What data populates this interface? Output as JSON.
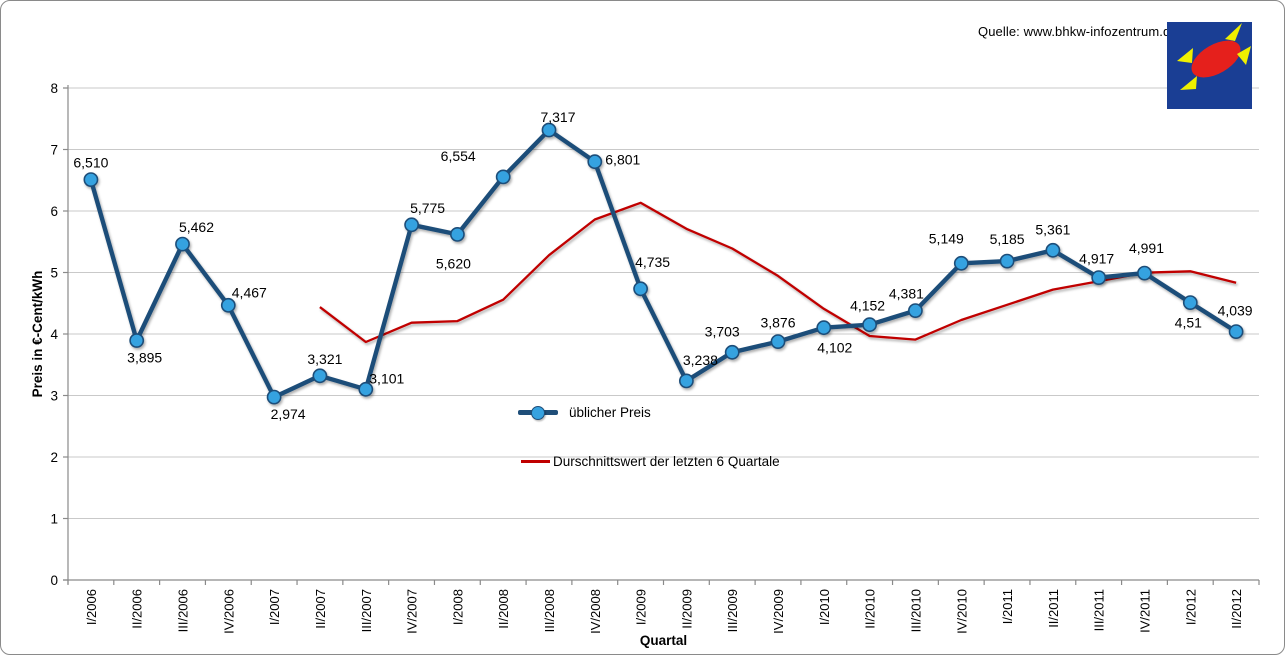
{
  "source": {
    "label": "Quelle: www.bhkw-infozentrum.de"
  },
  "logo": {
    "name": "bhkw-infozentrum-logo",
    "bg_color": "#1A3E94",
    "ellipse_color": "#E5201C",
    "spark_color": "#EFF000"
  },
  "chart_data": {
    "type": "line",
    "title": "",
    "xlabel": "Quartal",
    "ylabel": "Preis in €-Cent/kWh",
    "ylim": [
      0,
      8
    ],
    "yticks": [
      0,
      1,
      2,
      3,
      4,
      5,
      6,
      7,
      8
    ],
    "grid": true,
    "legend_position": "inside-center",
    "categories": [
      "I/2006",
      "II/2006",
      "III/2006",
      "IV/2006",
      "I/2007",
      "II/2007",
      "III/2007",
      "IV/2007",
      "I/2008",
      "II/2008",
      "III/2008",
      "IV/2008",
      "I/2009",
      "II/2009",
      "III/2009",
      "IV/2009",
      "I/2010",
      "II/2010",
      "III/2010",
      "IV/2010",
      "I/2011",
      "II/2011",
      "III/2011",
      "IV/2011",
      "I/2012",
      "II/2012"
    ],
    "series": [
      {
        "name": "üblicher Preis",
        "style": "line-with-markers",
        "color": "#1F4E79",
        "marker_color": "#36A2E0",
        "values": [
          6.51,
          3.895,
          5.462,
          4.467,
          2.974,
          3.321,
          3.101,
          5.775,
          5.62,
          6.554,
          7.317,
          6.801,
          4.735,
          3.238,
          3.703,
          3.876,
          4.102,
          4.152,
          4.381,
          5.149,
          5.185,
          5.361,
          4.917,
          4.991,
          4.51,
          4.039
        ],
        "labels": [
          "6,510",
          "3,895",
          "5,462",
          "4,467",
          "2,974",
          "3,321",
          "3,101",
          "5,775",
          "5,620",
          "6,554",
          "7,317",
          "6,801",
          "4,735",
          "3,238",
          "3,703",
          "3,876",
          "4,102",
          "4,152",
          "4,381",
          "5,149",
          "5,185",
          "5,361",
          "4,917",
          "4,991",
          "4,51",
          "4,039"
        ]
      },
      {
        "name": "Durschnittswert der letzten 6 Quartale",
        "style": "line",
        "color": "#C00000",
        "start_index": 5,
        "values": [
          4.438,
          3.87,
          4.183,
          4.21,
          4.558,
          5.281,
          5.861,
          6.134,
          5.711,
          5.391,
          4.945,
          4.409,
          3.968,
          3.909,
          4.227,
          4.474,
          4.722,
          4.858,
          4.997,
          5.019,
          4.834
        ]
      }
    ],
    "label_offsets": {
      "dx": [
        0,
        8,
        14,
        21,
        14,
        5,
        21,
        16,
        -4,
        -45,
        9,
        28,
        12,
        14,
        -10,
        0,
        11,
        -2,
        -9,
        -15,
        0,
        0,
        -2,
        2,
        -2,
        -1
      ],
      "dy": [
        -12,
        22,
        -12,
        -8,
        22,
        -12,
        -6,
        -12,
        34,
        -16,
        -8,
        3,
        -22,
        -16,
        -16,
        -14,
        25,
        -14,
        -12,
        -20,
        -17,
        -16,
        -14,
        -20,
        25,
        -16
      ]
    }
  }
}
